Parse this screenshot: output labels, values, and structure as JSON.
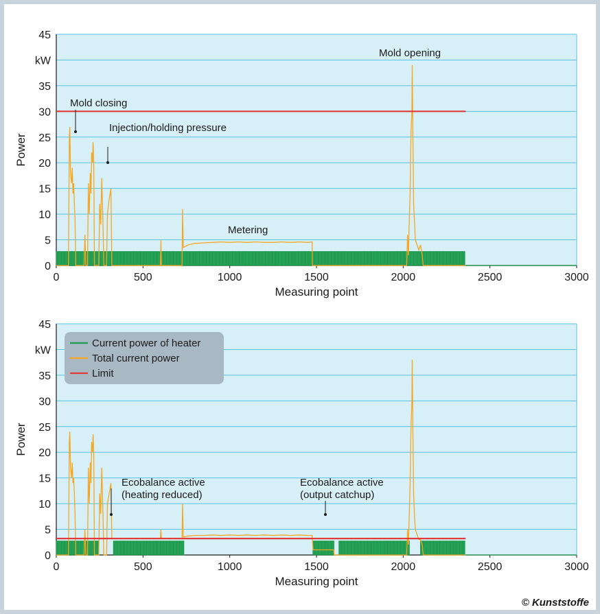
{
  "colors": {
    "plot_bg": "#d7f0f7",
    "grid": "#57c3e0",
    "heater": "#1a9a4a",
    "total": "#f5a623",
    "limit": "#e03a3a",
    "legend_bg": "#a9b9c3"
  },
  "copyright": "© Kunststoffe",
  "chart_data": [
    {
      "type": "line",
      "xlabel": "Measuring point",
      "ylabel": "Power",
      "unit_label": "kW",
      "xlim": [
        0,
        3000
      ],
      "ylim": [
        0,
        45
      ],
      "x_ticks": [
        "0",
        "500",
        "1000",
        "1500",
        "2000",
        "2500",
        "3000"
      ],
      "y_ticks": [
        "0",
        "5",
        "10",
        "15",
        "20",
        "25",
        "30",
        "35",
        "40",
        "45"
      ],
      "grid": true,
      "annotations": [
        {
          "text": "Mold closing",
          "x": 80,
          "y": 26.8
        },
        {
          "text": "Injection/holding pressure",
          "x": 270,
          "y": 20.8
        },
        {
          "text": "Metering",
          "x": 1100,
          "y": 5.5
        },
        {
          "text": "Mold opening",
          "x": 2060,
          "y": 40
        }
      ],
      "series": [
        {
          "key": "heater",
          "pattern": "pulses",
          "on_level": 2.7,
          "x_start": 0,
          "x_end": 2360,
          "pulse_period": 10
        },
        {
          "key": "total",
          "points": [
            [
              0,
              0
            ],
            [
              70,
              0
            ],
            [
              75,
              25
            ],
            [
              78,
              27
            ],
            [
              82,
              18
            ],
            [
              88,
              16
            ],
            [
              92,
              19
            ],
            [
              96,
              14
            ],
            [
              100,
              16
            ],
            [
              104,
              12
            ],
            [
              108,
              9
            ],
            [
              112,
              0
            ],
            [
              160,
              0
            ],
            [
              165,
              6
            ],
            [
              170,
              0
            ],
            [
              180,
              0
            ],
            [
              185,
              16
            ],
            [
              190,
              10
            ],
            [
              196,
              18
            ],
            [
              200,
              14
            ],
            [
              204,
              22
            ],
            [
              208,
              20
            ],
            [
              212,
              24
            ],
            [
              216,
              19
            ],
            [
              220,
              0
            ],
            [
              245,
              0
            ],
            [
              250,
              12
            ],
            [
              256,
              8
            ],
            [
              262,
              17
            ],
            [
              268,
              10
            ],
            [
              274,
              0
            ],
            [
              290,
              0
            ],
            [
              295,
              10
            ],
            [
              305,
              13
            ],
            [
              315,
              15
            ],
            [
              320,
              0
            ],
            [
              600,
              0
            ],
            [
              603,
              5
            ],
            [
              606,
              0
            ],
            [
              725,
              0
            ],
            [
              728,
              11
            ],
            [
              732,
              3.5
            ],
            [
              760,
              4
            ],
            [
              800,
              4.3
            ],
            [
              850,
              4.4
            ],
            [
              900,
              4.5
            ],
            [
              950,
              4.6
            ],
            [
              1000,
              4.5
            ],
            [
              1050,
              4.6
            ],
            [
              1100,
              4.5
            ],
            [
              1150,
              4.6
            ],
            [
              1200,
              4.5
            ],
            [
              1250,
              4.5
            ],
            [
              1300,
              4.6
            ],
            [
              1350,
              4.5
            ],
            [
              1400,
              4.6
            ],
            [
              1450,
              4.5
            ],
            [
              1475,
              4.6
            ],
            [
              1476,
              0
            ],
            [
              2020,
              0
            ],
            [
              2025,
              6
            ],
            [
              2030,
              2
            ],
            [
              2035,
              9
            ],
            [
              2040,
              14
            ],
            [
              2045,
              26
            ],
            [
              2050,
              30
            ],
            [
              2052,
              39
            ],
            [
              2056,
              25
            ],
            [
              2060,
              12
            ],
            [
              2066,
              8
            ],
            [
              2070,
              5
            ],
            [
              2080,
              4
            ],
            [
              2090,
              3
            ],
            [
              2100,
              4
            ],
            [
              2110,
              2
            ],
            [
              2115,
              0
            ],
            [
              2360,
              0
            ]
          ]
        },
        {
          "key": "limit",
          "points": [
            [
              0,
              30
            ],
            [
              2360,
              30
            ]
          ]
        }
      ]
    },
    {
      "type": "line",
      "xlabel": "Measuring point",
      "ylabel": "Power",
      "unit_label": "kW",
      "xlim": [
        0,
        3000
      ],
      "ylim": [
        0,
        45
      ],
      "x_ticks": [
        "0",
        "500",
        "1000",
        "1500",
        "2000",
        "2500",
        "3000"
      ],
      "y_ticks": [
        "0",
        "5",
        "10",
        "15",
        "20",
        "25",
        "30",
        "35",
        "40",
        "45"
      ],
      "grid": true,
      "legend": {
        "position": "top-left",
        "entries": [
          {
            "key": "heater",
            "label": "Current power of heater"
          },
          {
            "key": "total",
            "label": "Total current power"
          },
          {
            "key": "limit",
            "label": "Limit"
          }
        ]
      },
      "annotations": [
        {
          "text": "Ecobalance active",
          "text2": "(heating reduced)",
          "x": 310,
          "y": 3.2
        },
        {
          "text": "Ecobalance active",
          "text2": "(output catchup)",
          "x": 1530,
          "y": 3.2
        }
      ],
      "series": [
        {
          "key": "heater",
          "pattern": "pulses-gapped",
          "on_level": 2.7,
          "x_start": 0,
          "x_end": 2360,
          "pulse_period": 10,
          "gaps": [
            [
              250,
              325
            ],
            [
              740,
              1480
            ],
            [
              1600,
              1630
            ],
            [
              2040,
              2100
            ]
          ],
          "flat": [
            [
              1480,
              1600,
              2.7
            ]
          ]
        },
        {
          "key": "total",
          "points": [
            [
              0,
              0
            ],
            [
              70,
              0
            ],
            [
              75,
              22
            ],
            [
              78,
              24
            ],
            [
              82,
              17
            ],
            [
              88,
              15
            ],
            [
              92,
              18
            ],
            [
              96,
              14
            ],
            [
              100,
              15
            ],
            [
              104,
              12
            ],
            [
              108,
              8
            ],
            [
              112,
              0
            ],
            [
              160,
              0
            ],
            [
              165,
              5
            ],
            [
              170,
              0
            ],
            [
              180,
              0
            ],
            [
              185,
              17
            ],
            [
              190,
              10
            ],
            [
              196,
              18
            ],
            [
              200,
              14
            ],
            [
              204,
              22
            ],
            [
              208,
              20
            ],
            [
              212,
              23.5
            ],
            [
              216,
              19
            ],
            [
              220,
              0
            ],
            [
              245,
              0
            ],
            [
              250,
              12
            ],
            [
              256,
              8
            ],
            [
              262,
              17
            ],
            [
              268,
              10
            ],
            [
              274,
              0
            ],
            [
              290,
              0
            ],
            [
              295,
              10
            ],
            [
              305,
              12
            ],
            [
              315,
              14
            ],
            [
              320,
              3.2
            ],
            [
              600,
              3.2
            ],
            [
              603,
              5
            ],
            [
              606,
              3.2
            ],
            [
              725,
              3.2
            ],
            [
              728,
              10
            ],
            [
              732,
              3.5
            ],
            [
              760,
              3.7
            ],
            [
              800,
              3.8
            ],
            [
              850,
              3.8
            ],
            [
              900,
              3.9
            ],
            [
              950,
              3.8
            ],
            [
              1000,
              3.9
            ],
            [
              1050,
              3.8
            ],
            [
              1100,
              3.9
            ],
            [
              1150,
              3.8
            ],
            [
              1200,
              3.9
            ],
            [
              1250,
              3.8
            ],
            [
              1300,
              3.9
            ],
            [
              1350,
              3.8
            ],
            [
              1400,
              3.9
            ],
            [
              1450,
              3.8
            ],
            [
              1475,
              3.8
            ],
            [
              1480,
              1
            ],
            [
              1600,
              1
            ],
            [
              1602,
              0
            ],
            [
              2020,
              0
            ],
            [
              2025,
              5
            ],
            [
              2030,
              2
            ],
            [
              2035,
              8
            ],
            [
              2040,
              14
            ],
            [
              2045,
              25
            ],
            [
              2050,
              30
            ],
            [
              2052,
              38
            ],
            [
              2056,
              24
            ],
            [
              2060,
              12
            ],
            [
              2066,
              7
            ],
            [
              2070,
              5
            ],
            [
              2080,
              4
            ],
            [
              2090,
              3
            ],
            [
              2100,
              3
            ],
            [
              2110,
              2
            ],
            [
              2115,
              0
            ],
            [
              2360,
              0
            ]
          ]
        },
        {
          "key": "limit",
          "points": [
            [
              0,
              3.2
            ],
            [
              2360,
              3.2
            ]
          ]
        }
      ]
    }
  ]
}
